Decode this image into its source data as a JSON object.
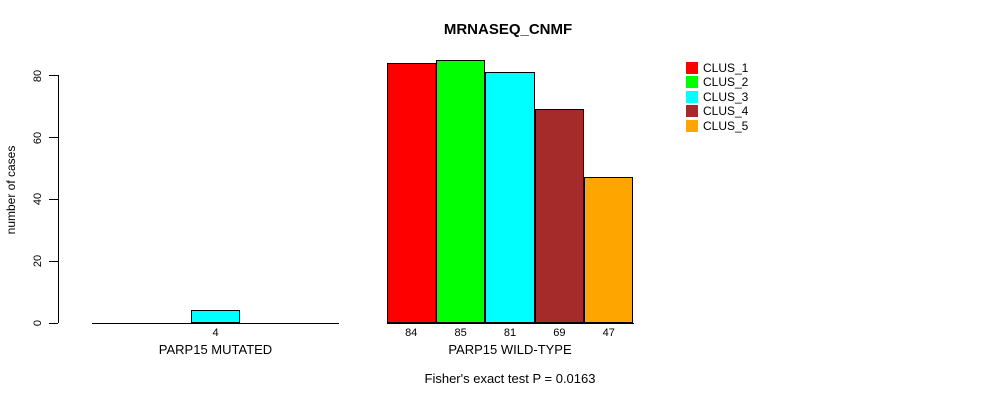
{
  "chart_data": {
    "type": "bar",
    "title": "MRNASEQ_CNMF",
    "ylabel": "number of cases",
    "ylim": [
      0,
      80
    ],
    "yticks": [
      "0",
      "20",
      "40",
      "60",
      "80"
    ],
    "grid": false,
    "legend_position": "top-right",
    "legend": [
      {
        "label": "CLUS_1",
        "color": "#FF0000"
      },
      {
        "label": "CLUS_2",
        "color": "#00FF00"
      },
      {
        "label": "CLUS_3",
        "color": "#00FFFF"
      },
      {
        "label": "CLUS_4",
        "color": "#A52A2A"
      },
      {
        "label": "CLUS_5",
        "color": "#FFA500"
      }
    ],
    "groups": [
      {
        "label": "PARP15 MUTATED",
        "series": [
          "CLUS_1",
          "CLUS_2",
          "CLUS_3",
          "CLUS_4",
          "CLUS_5"
        ],
        "values": [
          0,
          0,
          4,
          0,
          0
        ],
        "bar_labels": [
          "",
          "",
          "4",
          "",
          ""
        ]
      },
      {
        "label": "PARP15 WILD-TYPE",
        "series": [
          "CLUS_1",
          "CLUS_2",
          "CLUS_3",
          "CLUS_4",
          "CLUS_5"
        ],
        "values": [
          84,
          85,
          81,
          69,
          47
        ],
        "bar_labels": [
          "84",
          "85",
          "81",
          "69",
          "47"
        ]
      }
    ],
    "annotation": "Fisher's exact test P = 0.0163"
  }
}
